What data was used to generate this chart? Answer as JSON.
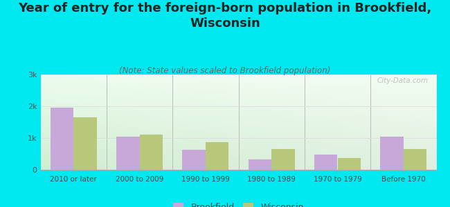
{
  "title": "Year of entry for the foreign-born population in Brookfield,\nWisconsin",
  "subtitle": "(Note: State values scaled to Brookfield population)",
  "categories": [
    "2010 or later",
    "2000 to 2009",
    "1990 to 1999",
    "1980 to 1989",
    "1970 to 1979",
    "Before 1970"
  ],
  "brookfield_values": [
    1950,
    1050,
    620,
    320,
    480,
    1050
  ],
  "wisconsin_values": [
    1650,
    1100,
    880,
    650,
    370,
    650
  ],
  "brookfield_color": "#c8a8d8",
  "wisconsin_color": "#b8c87a",
  "background_color": "#00e8f0",
  "ylim": [
    0,
    3000
  ],
  "yticks": [
    0,
    1000,
    2000,
    3000
  ],
  "ytick_labels": [
    "0",
    "1k",
    "2k",
    "3k"
  ],
  "title_fontsize": 13,
  "subtitle_fontsize": 8.5,
  "bar_width": 0.35,
  "legend_brookfield": "Brookfield",
  "legend_wisconsin": "Wisconsin",
  "watermark": "City-Data.com"
}
